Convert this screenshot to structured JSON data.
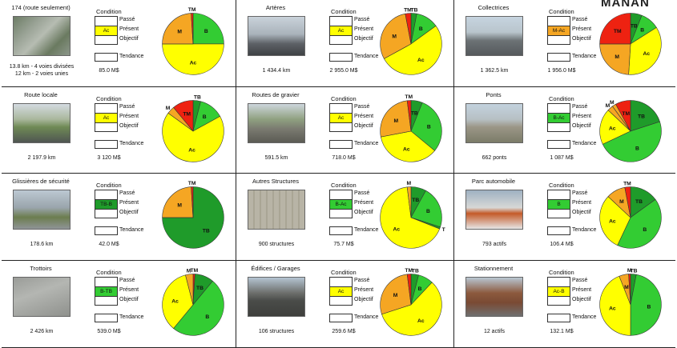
{
  "labels": {
    "condition": "Condition",
    "passe": "Passé",
    "present": "Présent",
    "objectif": "Objectif",
    "tendance": "Tendance"
  },
  "colors": {
    "TB": "#1f9b2a",
    "B": "#33cc33",
    "Ac": "#ffff00",
    "M": "#f5a623",
    "TM": "#ee2211",
    "present_fill": "#ffff00"
  },
  "cells": [
    {
      "title": "174 (route seulement)",
      "photo": "highway-interchange-photo",
      "metric": "13.8 km - 4 voies divisées\n12 km - 2 voies unies",
      "value": "85.0 M$",
      "present_rating": "Ac",
      "present_color": "#ffff00",
      "pie": [
        {
          "label": "B",
          "value": 25,
          "color": "#33cc33"
        },
        {
          "label": "Ac",
          "value": 50,
          "color": "#ffff00"
        },
        {
          "label": "M",
          "value": 24,
          "color": "#f5a623"
        },
        {
          "label": "TM",
          "value": 1,
          "color": "#ee2211"
        }
      ]
    },
    {
      "title": "Artères",
      "photo": "arterial-road-photo",
      "metric": "1 434.4 km",
      "value": "2 955.0 M$",
      "present_rating": "Ac",
      "present_color": "#ffff00",
      "pie": [
        {
          "label": "TB",
          "value": 3,
          "color": "#1f9b2a"
        },
        {
          "label": "B",
          "value": 12,
          "color": "#33cc33"
        },
        {
          "label": "Ac",
          "value": 52,
          "color": "#ffff00"
        },
        {
          "label": "M",
          "value": 30,
          "color": "#f5a623"
        },
        {
          "label": "TM",
          "value": 3,
          "color": "#ee2211"
        }
      ]
    },
    {
      "title": "Collectrices",
      "photo": "collector-road-photo",
      "metric": "1 362.5 km",
      "value": "1 956.0 M$",
      "present_rating": "M-Ac",
      "present_color": "#f5a623",
      "pie": [
        {
          "label": "TB",
          "value": 6,
          "color": "#1f9b2a"
        },
        {
          "label": "B",
          "value": 10,
          "color": "#33cc33"
        },
        {
          "label": "Ac",
          "value": 35,
          "color": "#ffff00"
        },
        {
          "label": "M",
          "value": 24,
          "color": "#f5a623"
        },
        {
          "label": "TM",
          "value": 25,
          "color": "#ee2211"
        }
      ]
    },
    {
      "title": "Route locale",
      "photo": "local-road-photo",
      "metric": "2 197.9 km",
      "value": "3 120 M$",
      "present_rating": "Ac",
      "present_color": "#ffff00",
      "pie": [
        {
          "label": "TB",
          "value": 4,
          "color": "#1f9b2a"
        },
        {
          "label": "B",
          "value": 13,
          "color": "#33cc33"
        },
        {
          "label": "Ac",
          "value": 68,
          "color": "#ffff00"
        },
        {
          "label": "M",
          "value": 4,
          "color": "#f5a623"
        },
        {
          "label": "TM",
          "value": 11,
          "color": "#ee2211"
        }
      ]
    },
    {
      "title": "Routes de gravier",
      "photo": "gravel-road-photo",
      "metric": "591.5 km",
      "value": "718.0 M$",
      "present_rating": "Ac",
      "present_color": "#ffff00",
      "pie": [
        {
          "label": "TB",
          "value": 6,
          "color": "#1f9b2a"
        },
        {
          "label": "B",
          "value": 30,
          "color": "#33cc33"
        },
        {
          "label": "Ac",
          "value": 36,
          "color": "#ffff00"
        },
        {
          "label": "M",
          "value": 26,
          "color": "#f5a623"
        },
        {
          "label": "TM",
          "value": 2,
          "color": "#ee2211"
        }
      ]
    },
    {
      "title": "Ponts",
      "photo": "bridge-photo",
      "metric": "662 ponts",
      "value": "1 087 M$",
      "present_rating": "B-Ac",
      "present_color": "#33cc33",
      "pie": [
        {
          "label": "TB",
          "value": 20,
          "color": "#1f9b2a"
        },
        {
          "label": "B",
          "value": 48,
          "color": "#33cc33"
        },
        {
          "label": "Ac",
          "value": 19,
          "color": "#ffff00"
        },
        {
          "label": "M",
          "value": 3,
          "color": "#f5a623"
        },
        {
          "label": "M",
          "value": 2,
          "color": "#f5a623"
        },
        {
          "label": "TM",
          "value": 8,
          "color": "#ee2211"
        }
      ]
    },
    {
      "title": "Glissières de sécurité",
      "photo": "guardrail-photo",
      "metric": "178.6 km",
      "value": "42.0 M$",
      "present_rating": "TB-B",
      "present_color": "#1f9b2a",
      "pie": [
        {
          "label": "TB",
          "value": 75,
          "color": "#1f9b2a"
        },
        {
          "label": "M",
          "value": 24,
          "color": "#f5a623"
        },
        {
          "label": "TM",
          "value": 1,
          "color": "#ee2211"
        }
      ]
    },
    {
      "title": "Autres Structures",
      "photo": "noise-wall-photo",
      "metric": "900 structures",
      "value": "75.7 M$",
      "present_rating": "B-Ac",
      "present_color": "#33cc33",
      "pie": [
        {
          "label": "TB",
          "value": 8,
          "color": "#1f9b2a"
        },
        {
          "label": "B",
          "value": 22,
          "color": "#33cc33"
        },
        {
          "label": "T",
          "value": 1,
          "color": "#1f9b2a"
        },
        {
          "label": "Ac",
          "value": 67,
          "color": "#ffff00"
        },
        {
          "label": "M",
          "value": 2,
          "color": "#f5a623"
        }
      ]
    },
    {
      "title": "Parc automobile",
      "photo": "snowplow-truck-photo",
      "metric": "793 actifs",
      "value": "106.4 M$",
      "present_rating": "B",
      "present_color": "#33cc33",
      "pie": [
        {
          "label": "TB",
          "value": 15,
          "color": "#1f9b2a"
        },
        {
          "label": "B",
          "value": 42,
          "color": "#33cc33"
        },
        {
          "label": "Ac",
          "value": 30,
          "color": "#ffff00"
        },
        {
          "label": "M",
          "value": 10,
          "color": "#f5a623"
        },
        {
          "label": "TM",
          "value": 3,
          "color": "#ee2211"
        }
      ]
    },
    {
      "title": "Trottoirs",
      "photo": "sidewalk-photo",
      "metric": "2 426 km",
      "value": "539.0 M$",
      "present_rating": "B-TB",
      "present_color": "#33cc33",
      "pie": [
        {
          "label": "TM",
          "value": 1,
          "color": "#ee2211"
        },
        {
          "label": "TB",
          "value": 10,
          "color": "#1f9b2a"
        },
        {
          "label": "B",
          "value": 50,
          "color": "#33cc33"
        },
        {
          "label": "Ac",
          "value": 35,
          "color": "#ffff00"
        },
        {
          "label": "M",
          "value": 4,
          "color": "#f5a623"
        }
      ]
    },
    {
      "title": "Édifices / Garages",
      "photo": "garage-building-photo",
      "metric": "106 structures",
      "value": "259.6 M$",
      "present_rating": "Ac",
      "present_color": "#ffff00",
      "pie": [
        {
          "label": "TB",
          "value": 4,
          "color": "#1f9b2a"
        },
        {
          "label": "B",
          "value": 8,
          "color": "#33cc33"
        },
        {
          "label": "Ac",
          "value": 58,
          "color": "#ffff00"
        },
        {
          "label": "M",
          "value": 28,
          "color": "#f5a623"
        },
        {
          "label": "TM",
          "value": 2,
          "color": "#ee2211"
        }
      ]
    },
    {
      "title": "Stationnement",
      "photo": "parking-garage-photo",
      "metric": "12 actifs",
      "value": "132.1 M$",
      "present_rating": "Ac-B",
      "present_color": "#ffff00",
      "pie": [
        {
          "label": "TB",
          "value": 3,
          "color": "#1f9b2a"
        },
        {
          "label": "B",
          "value": 47,
          "color": "#33cc33"
        },
        {
          "label": "Ac",
          "value": 44,
          "color": "#ffff00"
        },
        {
          "label": "M",
          "value": 5,
          "color": "#f5a623"
        },
        {
          "label": "M",
          "value": 1,
          "color": "#ee2211"
        }
      ]
    }
  ]
}
